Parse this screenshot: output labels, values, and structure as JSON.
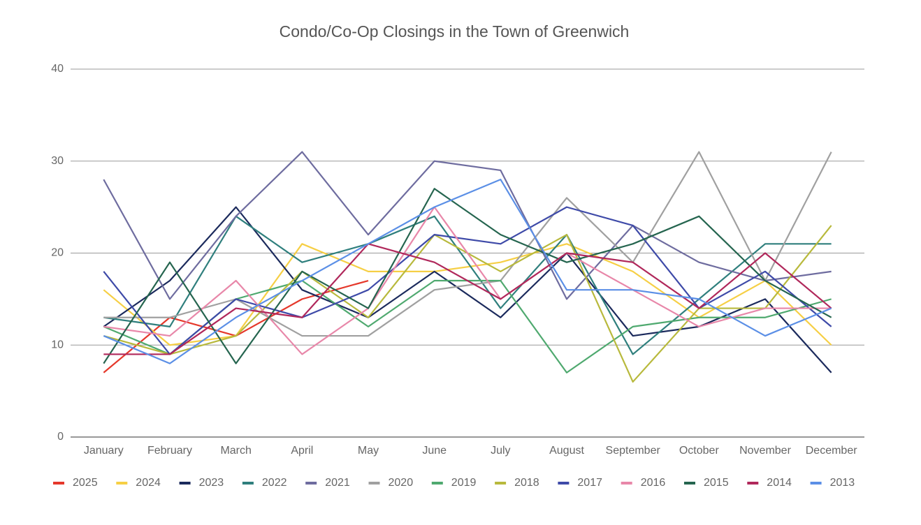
{
  "chart_data": {
    "type": "line",
    "title": "Condo/Co-Op Closings in the Town of Greenwich",
    "categories": [
      "January",
      "February",
      "March",
      "April",
      "May",
      "June",
      "July",
      "August",
      "September",
      "October",
      "November",
      "December"
    ],
    "ylim": [
      0,
      40
    ],
    "yticks": [
      0,
      10,
      20,
      30,
      40
    ],
    "grid": true,
    "legend": "bottom",
    "series": [
      {
        "name": "2025",
        "color": "#e5382b",
        "values": [
          7,
          13,
          11,
          15,
          17,
          null,
          null,
          null,
          null,
          null,
          null,
          null
        ]
      },
      {
        "name": "2024",
        "color": "#f6cf45",
        "values": [
          16,
          10,
          11,
          21,
          18,
          18,
          19,
          21,
          18,
          13,
          17,
          10
        ]
      },
      {
        "name": "2023",
        "color": "#1b2a5c",
        "values": [
          12,
          17,
          25,
          16,
          13,
          18,
          13,
          20,
          11,
          12,
          15,
          7
        ]
      },
      {
        "name": "2022",
        "color": "#2f7f7d",
        "values": [
          13,
          12,
          24,
          19,
          21,
          24,
          14,
          22,
          9,
          15,
          21,
          21
        ]
      },
      {
        "name": "2021",
        "color": "#6e6c9f",
        "values": [
          28,
          15,
          24,
          31,
          22,
          30,
          29,
          15,
          23,
          19,
          17,
          18
        ]
      },
      {
        "name": "2020",
        "color": "#a0a0a0",
        "values": [
          13,
          13,
          15,
          11,
          11,
          16,
          17,
          26,
          19,
          31,
          17,
          31
        ]
      },
      {
        "name": "2019",
        "color": "#4fa96f",
        "values": [
          12,
          9,
          15,
          17,
          12,
          17,
          17,
          7,
          12,
          13,
          13,
          15
        ]
      },
      {
        "name": "2018",
        "color": "#b8b93c",
        "values": [
          11,
          9,
          11,
          18,
          13,
          22,
          18,
          22,
          6,
          14,
          14,
          23
        ]
      },
      {
        "name": "2017",
        "color": "#3e4aa8",
        "values": [
          18,
          9,
          15,
          13,
          16,
          22,
          21,
          25,
          23,
          14,
          18,
          12
        ]
      },
      {
        "name": "2016",
        "color": "#e887a9",
        "values": [
          12,
          11,
          17,
          9,
          14,
          25,
          15,
          20,
          16,
          12,
          14,
          14
        ]
      },
      {
        "name": "2015",
        "color": "#25654f",
        "values": [
          8,
          19,
          8,
          18,
          14,
          27,
          22,
          19,
          21,
          24,
          17,
          13
        ]
      },
      {
        "name": "2014",
        "color": "#b0285b",
        "values": [
          9,
          9,
          14,
          13,
          21,
          19,
          15,
          20,
          19,
          14,
          20,
          14
        ]
      },
      {
        "name": "2013",
        "color": "#5b8fe6",
        "values": [
          11,
          8,
          13,
          17,
          21,
          25,
          28,
          16,
          16,
          15,
          11,
          14
        ]
      }
    ]
  }
}
